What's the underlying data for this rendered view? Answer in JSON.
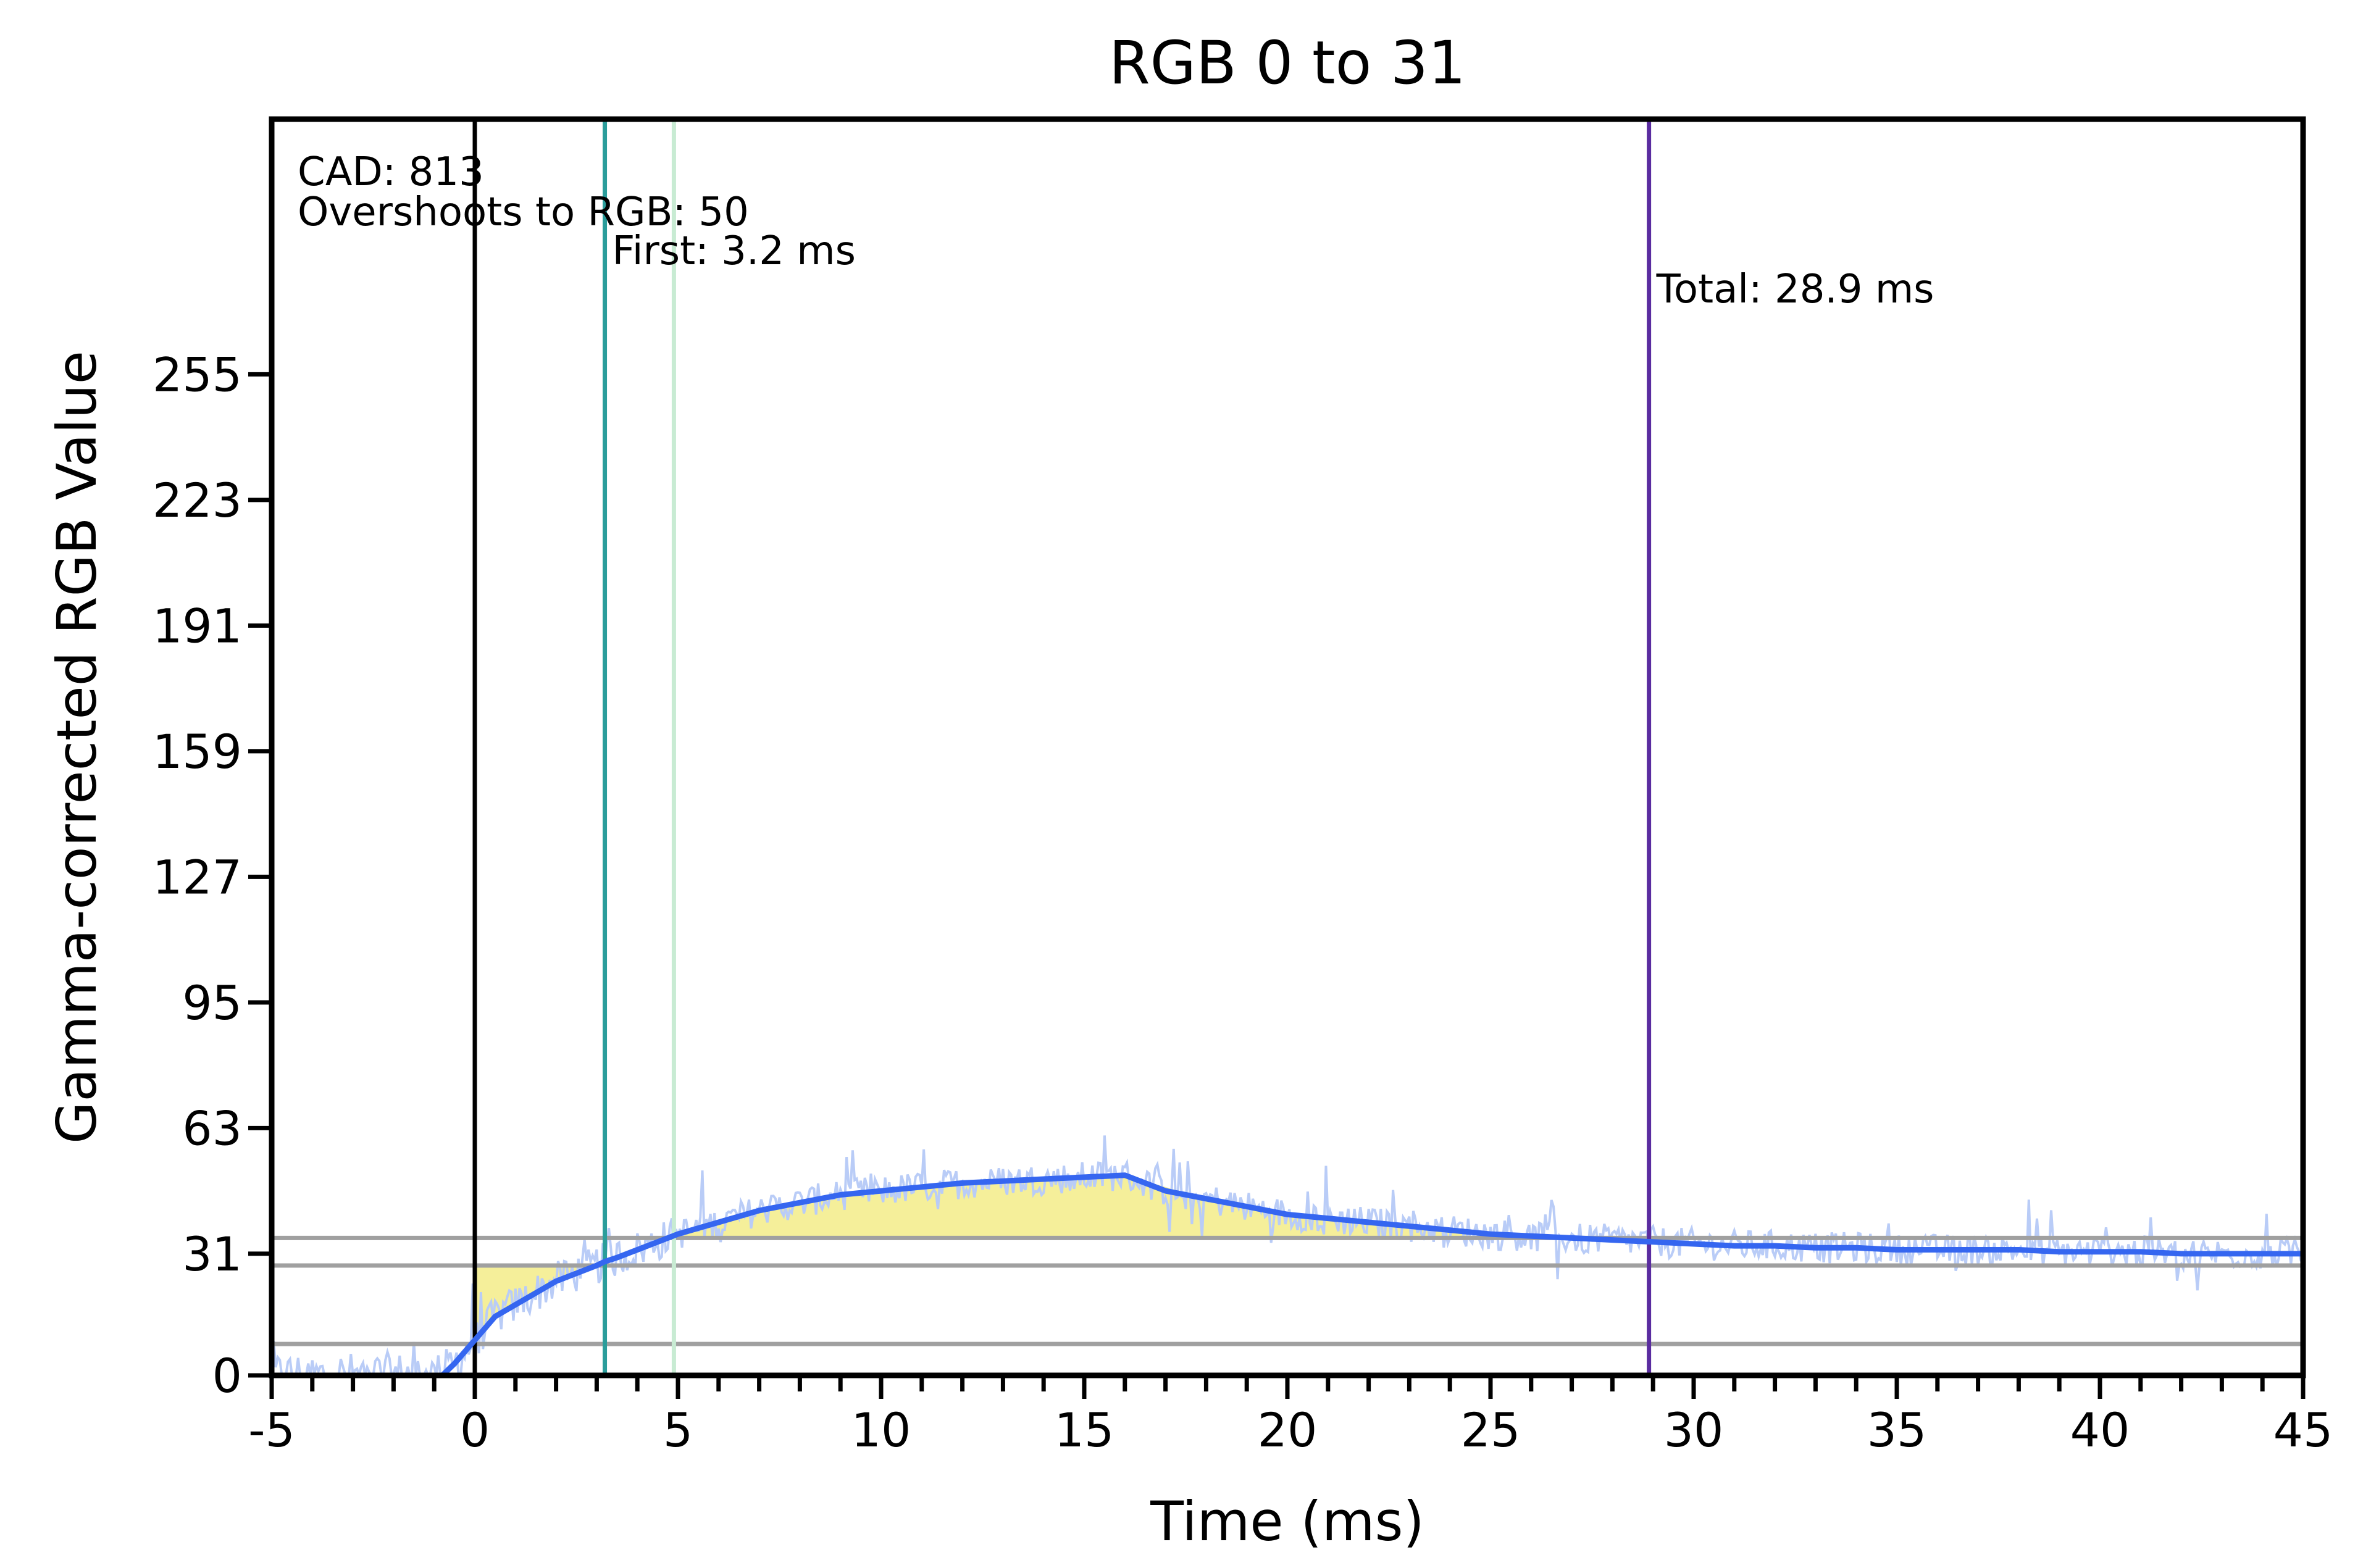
{
  "chart_data": {
    "type": "line",
    "title": "RGB 0 to 31",
    "xlabel": "Time (ms)",
    "ylabel": "Gamma-corrected RGB Value",
    "xlim": [
      -5,
      45
    ],
    "ylim": [
      0,
      320
    ],
    "x_ticks": [
      -5,
      0,
      5,
      10,
      15,
      20,
      25,
      30,
      35,
      40,
      45
    ],
    "x_tick_labels": [
      "-5",
      "0",
      "5",
      "10",
      "15",
      "20",
      "25",
      "30",
      "35",
      "40",
      "45"
    ],
    "x_minor_step": 1,
    "y_ticks": [
      0,
      31,
      63,
      95,
      127,
      159,
      191,
      223,
      255
    ],
    "y_tick_labels": [
      "0",
      "31",
      "63",
      "95",
      "127",
      "159",
      "191",
      "223",
      "255"
    ],
    "grid": false,
    "reference_lines": [
      {
        "name": "upper-tolerance",
        "y": 35,
        "color": "#a0a0a0"
      },
      {
        "name": "lower-tolerance",
        "y": 28,
        "color": "#a0a0a0"
      },
      {
        "name": "start-tolerance",
        "y": 8,
        "color": "#a0a0a0"
      }
    ],
    "markers": [
      {
        "name": "start-marker",
        "x": 0,
        "color": "#000000"
      },
      {
        "name": "first-marker",
        "x": 3.2,
        "color": "#2a9d9b"
      },
      {
        "name": "settle-marker",
        "x": 4.9,
        "color": "#c8ebd3"
      },
      {
        "name": "total-marker",
        "x": 28.9,
        "color": "#5a2ca0"
      }
    ],
    "annotations": {
      "cad": "CAD: 813",
      "overshoot": "Overshoots to RGB: 50",
      "first": "First: 3.2 ms",
      "total": "Total: 28.9 ms"
    },
    "series": [
      {
        "name": "smoothed",
        "color": "#3566f0",
        "x": [
          -5,
          -4,
          -3,
          -2,
          -1,
          -0.8,
          -0.5,
          0,
          0.5,
          1,
          1.5,
          2,
          2.5,
          3,
          3.2,
          3.5,
          4,
          4.5,
          5,
          6,
          7,
          8,
          9,
          10,
          11,
          12,
          13,
          14,
          15,
          16,
          17,
          18,
          19,
          20,
          21,
          22,
          23,
          24,
          25,
          26,
          27,
          28,
          29,
          30,
          31,
          32,
          33,
          34,
          35,
          36,
          37,
          38,
          39,
          40,
          41,
          42,
          43,
          44,
          45
        ],
        "y": [
          0,
          0,
          0,
          0,
          0,
          0,
          3,
          9,
          15,
          18,
          21,
          24,
          26,
          28,
          29,
          30,
          32,
          34,
          36,
          39,
          42,
          44,
          46,
          47,
          48,
          49,
          49.5,
          50,
          50.5,
          51,
          47,
          45,
          43,
          41,
          40,
          39,
          38,
          37,
          36,
          35.5,
          35,
          34.5,
          34,
          33.5,
          33,
          33,
          32.5,
          32.5,
          32,
          32,
          32,
          32,
          31.5,
          31.5,
          31.5,
          31,
          31,
          31,
          31
        ]
      }
    ],
    "fill_color": "#f5ef9a",
    "raw_color": "#b9ccf7",
    "fill_regions": [
      {
        "x": [
          0,
          0.5,
          1,
          1.5,
          2,
          2.5,
          3,
          3.2
        ],
        "y_ref": 28
      },
      {
        "x": [
          4.9,
          6,
          8,
          10,
          12,
          14,
          16,
          18,
          20,
          22,
          24.5
        ],
        "y_ref": 35
      }
    ]
  }
}
